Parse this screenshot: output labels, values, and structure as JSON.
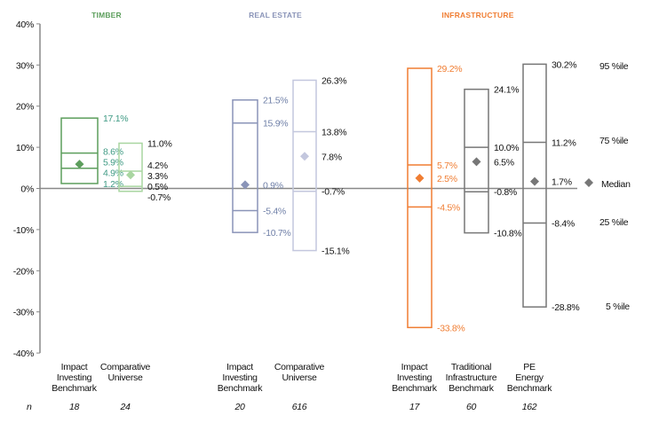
{
  "chart_data": {
    "type": "box",
    "ylim": [
      -40,
      40
    ],
    "y_ticks": [
      "40%",
      "30%",
      "20%",
      "10%",
      "0%",
      "-10%",
      "-20%",
      "-30%",
      "-40%"
    ],
    "y_tick_values": [
      40,
      30,
      20,
      10,
      0,
      -10,
      -20,
      -30,
      -40
    ],
    "groups": [
      {
        "name": "TIMBER",
        "color": "#5c9e5c"
      },
      {
        "name": "REAL ESTATE",
        "color": "#8a94b8"
      },
      {
        "name": "INFRASTRUCTURE",
        "color": "#f07d32"
      }
    ],
    "n_label": "n",
    "series": [
      {
        "group": 0,
        "label": [
          "Impact",
          "Investing",
          "Benchmark"
        ],
        "n": "18",
        "color": "#5c9e5c",
        "label_color": "#3f9a84",
        "p5": 1.2,
        "p25": 4.9,
        "median": 5.9,
        "p75": 8.6,
        "p95": 17.1,
        "value_labels": [
          "1.2%",
          "4.9%",
          "5.9%",
          "8.6%",
          "17.1%"
        ]
      },
      {
        "group": 0,
        "label": [
          "Comparative",
          "Universe"
        ],
        "n": "24",
        "color": "#a9d6a1",
        "label_color": "#111111",
        "p5": -0.7,
        "p25": 0.5,
        "median": 3.3,
        "p75": 4.2,
        "p95": 11.0,
        "value_labels": [
          "-0.7%",
          "0.5%",
          "3.3%",
          "4.2%",
          "11.0%"
        ]
      },
      {
        "group": 1,
        "label": [
          "Impact",
          "Investing",
          "Benchmark"
        ],
        "n": "20",
        "color": "#8a94b8",
        "label_color": "#7080a8",
        "p5": -10.7,
        "p25": -5.4,
        "median": 0.9,
        "p75": 15.9,
        "p95": 21.5,
        "value_labels": [
          "-10.7%",
          "-5.4%",
          "0.9%",
          "15.9%",
          "21.5%"
        ]
      },
      {
        "group": 1,
        "label": [
          "Comparative",
          "Universe"
        ],
        "n": "616",
        "color": "#c3c7de",
        "label_color": "#111111",
        "p5": -15.1,
        "p25": -0.7,
        "median": 7.8,
        "p75": 13.8,
        "p95": 26.3,
        "value_labels": [
          "-15.1%",
          "-0.7%",
          "7.8%",
          "13.8%",
          "26.3%"
        ]
      },
      {
        "group": 2,
        "label": [
          "Impact",
          "Investing",
          "Benchmark"
        ],
        "n": "17",
        "color": "#f07d32",
        "label_color": "#f07d32",
        "p5": -33.8,
        "p25": -4.5,
        "median": 2.5,
        "p75": 5.7,
        "p95": 29.2,
        "value_labels": [
          "-33.8%",
          "-4.5%",
          "2.5%",
          "5.7%",
          "29.2%"
        ]
      },
      {
        "group": 2,
        "label": [
          "Traditional",
          "Infrastructure",
          "Benchmark"
        ],
        "n": "60",
        "color": "#777777",
        "label_color": "#111111",
        "p5": -10.8,
        "p25": -0.8,
        "median": 6.5,
        "p75": 10.0,
        "p95": 24.1,
        "value_labels": [
          "-10.8%",
          "-0.8%",
          "6.5%",
          "10.0%",
          "24.1%"
        ]
      },
      {
        "group": 2,
        "label": [
          "PE",
          "Energy",
          "Benchmark"
        ],
        "n": "162",
        "color": "#777777",
        "label_color": "#111111",
        "p5": -28.8,
        "p25": -8.4,
        "median": 1.7,
        "p75": 11.2,
        "p95": 30.2,
        "value_labels": [
          "-28.8%",
          "-8.4%",
          "1.7%",
          "11.2%",
          "30.2%"
        ]
      }
    ],
    "legend": {
      "p95": "95 %ile",
      "p75": "75 %ile",
      "median": "Median",
      "p25": "25 %ile",
      "p5": "5 %ile",
      "placement": "right"
    }
  }
}
